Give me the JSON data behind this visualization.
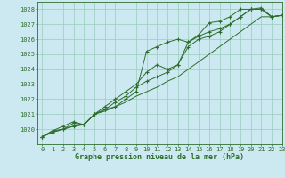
{
  "xlabel": "Graphe pression niveau de la mer (hPa)",
  "bg_color": "#cce8f0",
  "grid_color": "#99ccbb",
  "line_color": "#2d6e2d",
  "x": [
    0,
    1,
    2,
    3,
    4,
    5,
    6,
    7,
    8,
    9,
    10,
    11,
    12,
    13,
    14,
    15,
    16,
    17,
    18,
    19,
    20,
    21,
    22,
    23
  ],
  "ylim": [
    1019.0,
    1028.5
  ],
  "xlim": [
    -0.5,
    23
  ],
  "series": [
    [
      1019.5,
      1019.9,
      1020.0,
      1020.2,
      1020.3,
      1021.0,
      1021.3,
      1021.5,
      1022.0,
      1022.5,
      1025.2,
      1025.5,
      1025.8,
      1026.0,
      1025.8,
      1026.3,
      1027.1,
      1027.2,
      1027.5,
      1028.0,
      1028.0,
      1028.1,
      1027.5,
      1027.6
    ],
    [
      1019.5,
      1019.8,
      1020.0,
      1020.4,
      1020.3,
      1021.0,
      1021.3,
      1021.8,
      1022.2,
      1022.8,
      1023.2,
      1023.5,
      1023.8,
      1024.3,
      1025.8,
      1026.2,
      1026.5,
      1026.7,
      1027.0,
      1027.5,
      1028.0,
      1028.0,
      1027.5,
      1027.6
    ],
    [
      1019.5,
      1019.9,
      1020.2,
      1020.5,
      1020.3,
      1021.0,
      1021.5,
      1022.0,
      1022.5,
      1023.0,
      1023.8,
      1024.3,
      1024.0,
      1024.3,
      1025.5,
      1026.0,
      1026.2,
      1026.5,
      1027.0,
      1027.5,
      1028.0,
      1028.0,
      1027.5,
      1027.6
    ],
    [
      1019.5,
      1019.8,
      1020.0,
      1020.2,
      1020.3,
      1021.0,
      1021.2,
      1021.5,
      1021.8,
      1022.2,
      1022.5,
      1022.8,
      1023.2,
      1023.5,
      1024.0,
      1024.5,
      1025.0,
      1025.5,
      1026.0,
      1026.5,
      1027.0,
      1027.5,
      1027.5,
      1027.6
    ]
  ],
  "yticks": [
    1020,
    1021,
    1022,
    1023,
    1024,
    1025,
    1026,
    1027,
    1028
  ],
  "xticks": [
    0,
    1,
    2,
    3,
    4,
    5,
    6,
    7,
    8,
    9,
    10,
    11,
    12,
    13,
    14,
    15,
    16,
    17,
    18,
    19,
    20,
    21,
    22,
    23
  ],
  "tick_fontsize": 5.0,
  "xlabel_fontsize": 6.0
}
